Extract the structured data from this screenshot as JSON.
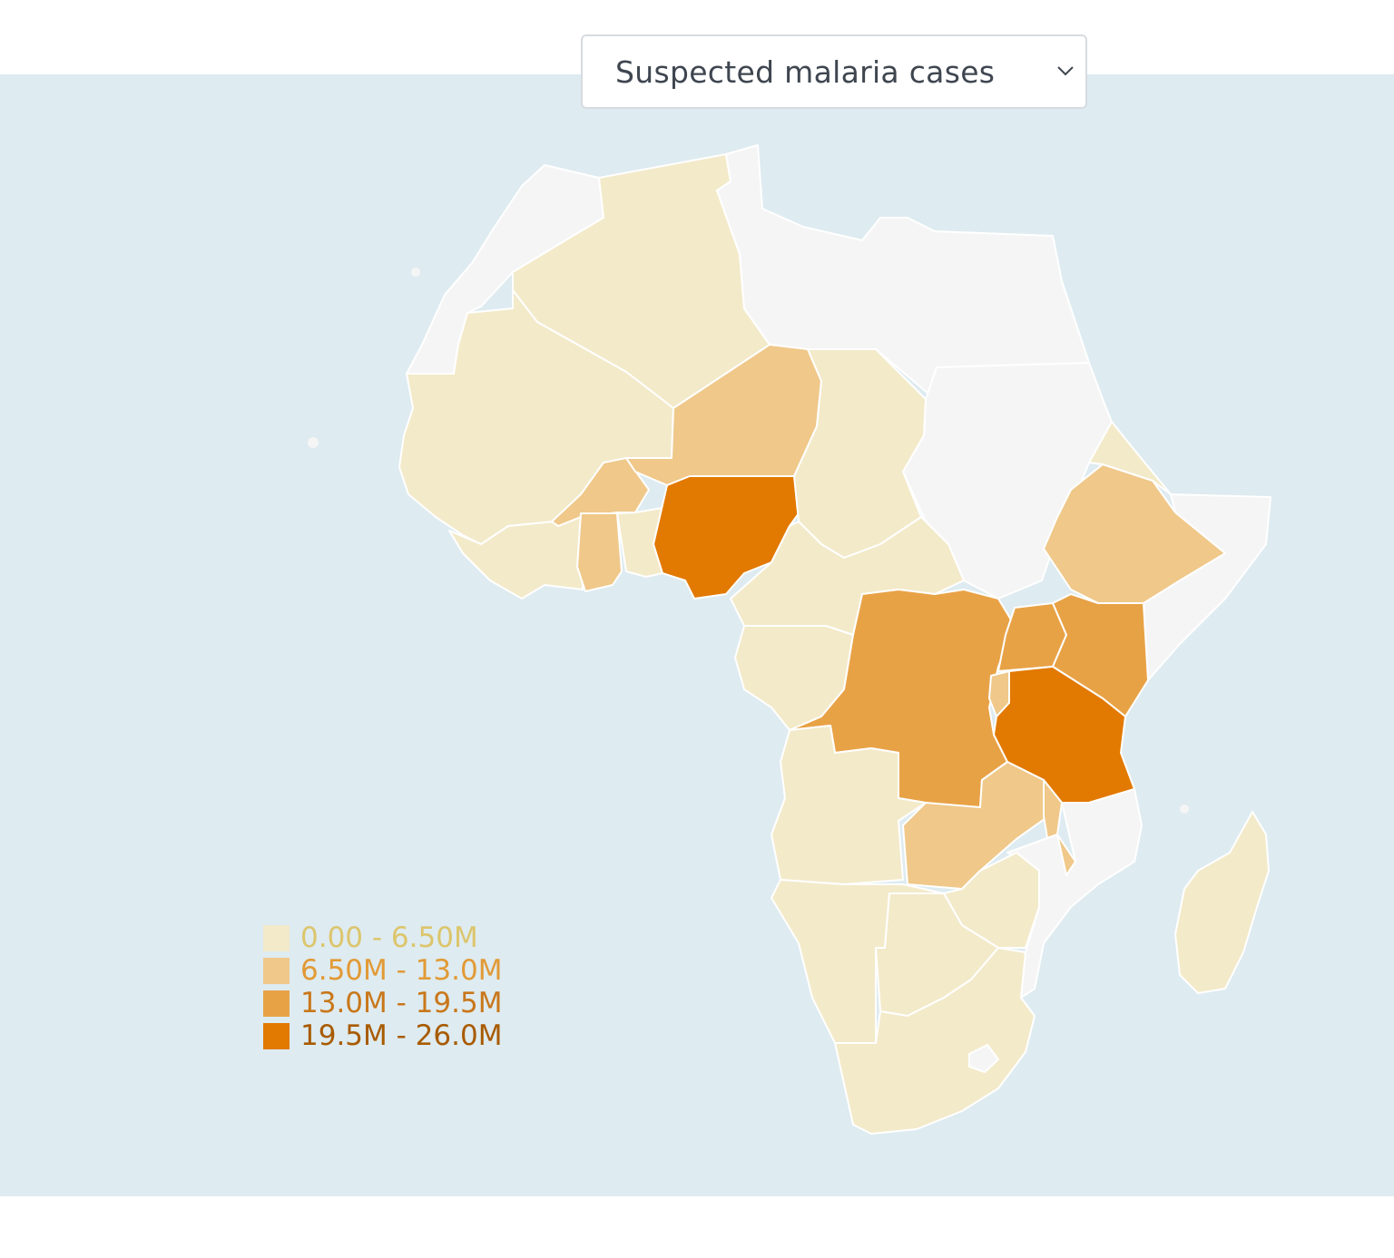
{
  "selector": {
    "selected": "Suspected malaria cases",
    "icon": "chevron-down-icon"
  },
  "colors": {
    "ocean": "#deebf0",
    "no_data": "#f5f5f6",
    "border": "#ffffff",
    "class_1": "#f3eaca",
    "class_2": "#efc88a",
    "class_3": "#e8a246",
    "class_4": "#e27900"
  },
  "legend": [
    {
      "label": "0.00 - 6.50M",
      "swatch": "#f3eaca",
      "text_color": "#dcc56c"
    },
    {
      "label": "6.50M - 13.0M",
      "swatch": "#efc88a",
      "text_color": "#e29a36"
    },
    {
      "label": "13.0M - 19.5M",
      "swatch": "#e8a246",
      "text_color": "#c9771a"
    },
    {
      "label": "19.5M - 26.0M",
      "swatch": "#e27900",
      "text_color": "#a85b00"
    }
  ]
}
